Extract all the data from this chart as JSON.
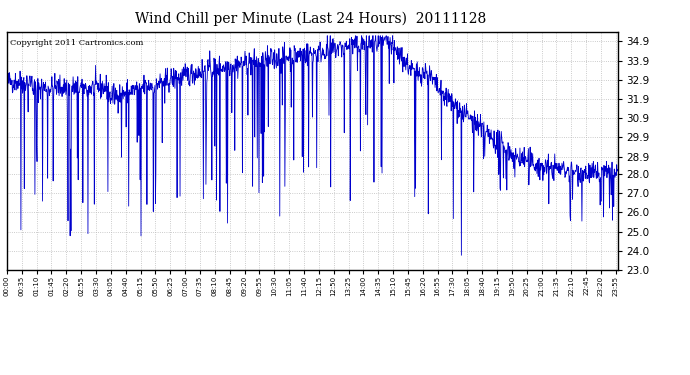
{
  "title": "Wind Chill per Minute (Last 24 Hours)  20111128",
  "copyright": "Copyright 2011 Cartronics.com",
  "line_color": "#0000cc",
  "background_color": "#ffffff",
  "plot_bg_color": "#ffffff",
  "grid_color": "#bbbbbb",
  "ylim": [
    23.0,
    35.4
  ],
  "yticks": [
    23.0,
    24.0,
    25.0,
    26.0,
    27.0,
    28.0,
    28.9,
    29.9,
    30.9,
    31.9,
    32.9,
    33.9,
    34.9
  ],
  "xlabel": "",
  "ylabel": "",
  "xtick_interval": 35,
  "total_minutes": 1440
}
